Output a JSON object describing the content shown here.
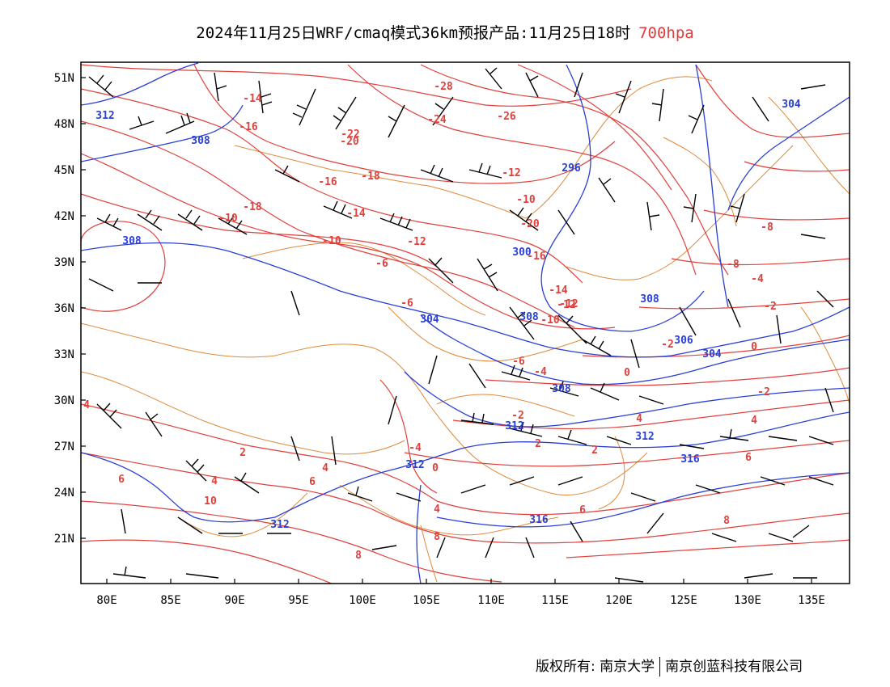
{
  "title": {
    "text": "2024年11月25日WRF/cmaq模式36km预报产品:11月25日18时",
    "level": "700hpa"
  },
  "colors": {
    "temperature": "#e0403c",
    "geopotential": "#2a3fd6",
    "boundary": "#e08a3a",
    "wind": "#000000"
  },
  "axes": {
    "lon_ticks": [
      "80E",
      "85E",
      "90E",
      "95E",
      "100E",
      "105E",
      "110E",
      "115E",
      "120E",
      "125E",
      "130E",
      "135E"
    ],
    "lat_ticks": [
      "51N",
      "48N",
      "45N",
      "42N",
      "39N",
      "36N",
      "33N",
      "30N",
      "27N",
      "24N",
      "21N"
    ]
  },
  "temperature_labels": [
    "-28",
    "-24",
    "-26",
    "-14",
    "-16",
    "-22",
    "-20",
    "-18",
    "-12",
    "-16",
    "-10",
    "-20",
    "-18",
    "-12",
    "-10",
    "-14",
    "-10",
    "-12",
    "-8",
    "-6",
    "-16",
    "-14",
    "-12",
    "-10",
    "-6",
    "-8",
    "-4",
    "-2",
    "-6",
    "-4",
    "-2",
    "-4",
    "0",
    "0",
    "-2",
    "0",
    "4",
    "2",
    "-2",
    "2",
    "4",
    "2",
    "4",
    "4",
    "6",
    "6",
    "8",
    "6",
    "10",
    "4",
    "8",
    "8",
    "6",
    "4"
  ],
  "height_labels": [
    "312",
    "308",
    "296",
    "304",
    "308",
    "300",
    "308",
    "304",
    "308",
    "306",
    "304",
    "308",
    "312",
    "312",
    "312",
    "316",
    "316",
    "312"
  ],
  "footer": {
    "left": "版权所有: 南京大学",
    "right": "南京创蓝科技有限公司"
  }
}
